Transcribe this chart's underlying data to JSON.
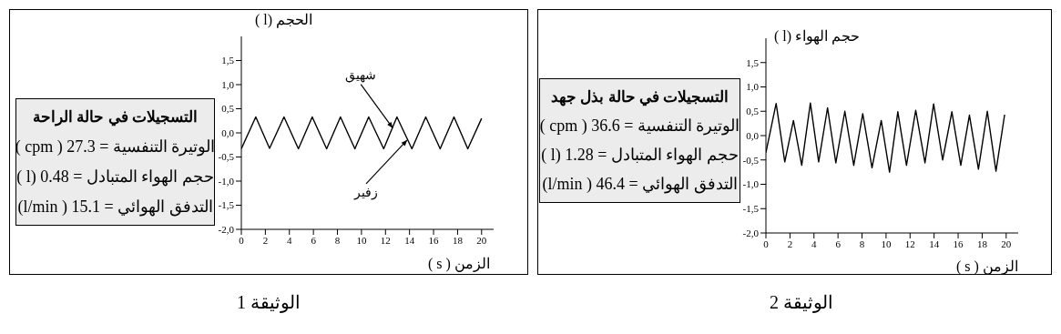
{
  "chart_data": [
    {
      "type": "other",
      "title": "التسجيلات في حالة الراحة",
      "annotations": [
        "الوتيرة التنفسية = 27.3 ( cpm )",
        "حجم الهواء المتبادل = 0.48 (l )",
        "التدفق الهوائي = 15.1 ( l/min)"
      ]
    },
    {
      "type": "line",
      "ylabel": "الحجم (l )",
      "xlabel": "الزمن ( s )",
      "color": "#000000",
      "marker": "none",
      "grid": false,
      "legend": false,
      "x": [
        0,
        1.2,
        2.35,
        3.55,
        4.75,
        5.9,
        7.1,
        8.25,
        9.45,
        10.6,
        11.85,
        12.95,
        14.2,
        15.35,
        16.55,
        17.7,
        18.85,
        20
      ],
      "values": [
        -0.33,
        0.33,
        -0.32,
        0.33,
        -0.33,
        0.33,
        -0.33,
        0.33,
        -0.33,
        0.33,
        -0.33,
        0.33,
        -0.33,
        0.33,
        -0.33,
        0.33,
        -0.33,
        0.3
      ],
      "xlim": [
        0,
        21
      ],
      "xticks": [
        0,
        2,
        4,
        6,
        8,
        10,
        12,
        14,
        16,
        18,
        20
      ],
      "ylim": [
        -2,
        2
      ],
      "yticks": [
        {
          "value": -2,
          "label": "-2,0"
        },
        {
          "value": -1.5,
          "label": "-1,5"
        },
        {
          "value": -1,
          "label": "-1,0"
        },
        {
          "value": -0.5,
          "label": "-0,5"
        },
        {
          "value": 0,
          "label": "0,0"
        },
        {
          "value": 0.5,
          "label": "0,5"
        },
        {
          "value": 1,
          "label": "1,0"
        },
        {
          "value": 1.5,
          "label": "1,5"
        }
      ],
      "annotations": [
        {
          "text": "شهيق",
          "x": 12.6,
          "y": 0.1
        },
        {
          "text": "زفير",
          "x": 13.8,
          "y": -0.15
        },
        "الوثيقة 1"
      ]
    },
    {
      "type": "other",
      "title": "التسجيلات في حالة بذل جهد",
      "annotations": [
        "الوتيرة التنفسية = 36.6 ( cpm )",
        "حجم الهواء المتبادل = 1.28 (l )",
        "التدفق الهوائي = 46.4 ( l/min)"
      ]
    },
    {
      "type": "line",
      "ylabel": "حجم الهواء (l )",
      "xlabel": "الزمن ( s )",
      "color": "#000000",
      "marker": "none",
      "grid": false,
      "legend": false,
      "x": [
        0,
        0.85,
        1.57,
        2.29,
        2.98,
        3.7,
        4.39,
        5.13,
        5.82,
        6.57,
        7.31,
        8.06,
        8.83,
        9.6,
        10.29,
        10.98,
        11.7,
        12.47,
        13.24,
        13.96,
        14.71,
        15.48,
        16.22,
        16.94,
        17.69,
        18.43,
        19.15,
        19.87
      ],
      "values": [
        -0.35,
        0.66,
        -0.54,
        0.31,
        -0.61,
        0.67,
        -0.54,
        0.57,
        -0.56,
        0.5,
        -0.61,
        0.45,
        -0.66,
        0.31,
        -0.75,
        0.49,
        -0.61,
        0.52,
        -0.56,
        0.65,
        -0.5,
        0.49,
        -0.61,
        0.42,
        -0.69,
        0.5,
        -0.73,
        0.43
      ],
      "xlim": [
        0,
        21
      ],
      "xticks": [
        0,
        2,
        4,
        6,
        8,
        10,
        12,
        14,
        16,
        18,
        20
      ],
      "ylim": [
        -2,
        2
      ],
      "yticks": [
        {
          "value": -2,
          "label": "-2,0"
        },
        {
          "value": -1.5,
          "label": "-1,5"
        },
        {
          "value": -1,
          "label": "-1,0"
        },
        {
          "value": -0.5,
          "label": "-0,5"
        },
        {
          "value": 0,
          "label": "0,0"
        },
        {
          "value": 0.5,
          "label": "0,5"
        },
        {
          "value": 1,
          "label": "1,0"
        },
        {
          "value": 1.5,
          "label": "1,5"
        }
      ],
      "annotations": [
        "الوثيقة 2"
      ]
    }
  ]
}
